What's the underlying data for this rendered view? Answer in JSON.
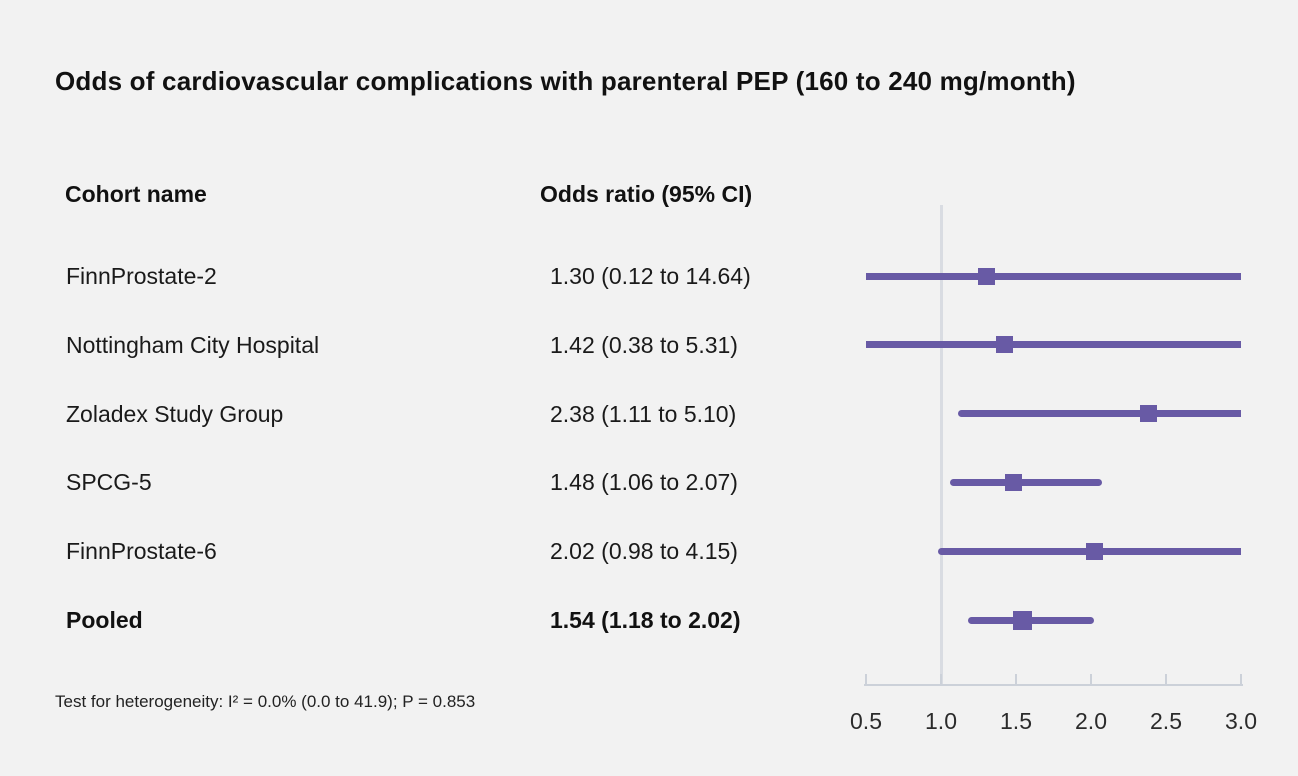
{
  "title": "Odds of cardiovascular complications with parenteral PEP (160 to 240 mg/month)",
  "table": {
    "cohort_header": "Cohort name",
    "or_header": "Odds ratio (95% CI)"
  },
  "footnote": "Test for heterogeneity: I² = 0.0% (0.0 to 41.9); P = 0.853",
  "colors": {
    "background": "#f2f2f2",
    "marker_purple": "#685aa5",
    "reference_line": "#d9dce2",
    "axis": "#ccd1d9",
    "text": "#1a1a1a"
  },
  "chart_data": {
    "type": "forest",
    "title": "Odds of cardiovascular complications with parenteral PEP (160 to 240 mg/month)",
    "xlim": [
      0.5,
      3.0
    ],
    "x_ticks": [
      "0.5",
      "1.0",
      "1.5",
      "2.0",
      "2.5",
      "3.0"
    ],
    "x_tick_values": [
      0.5,
      1.0,
      1.5,
      2.0,
      2.5,
      3.0
    ],
    "reference_line_value": 1.0,
    "grid": false,
    "legend": "none",
    "rows": [
      {
        "cohort": "FinnProstate-2",
        "or": 1.3,
        "ci_low": 0.12,
        "ci_high": 14.64,
        "value_label": "1.30 (0.12 to 14.64)",
        "pooled": false
      },
      {
        "cohort": "Nottingham City Hospital",
        "or": 1.42,
        "ci_low": 0.38,
        "ci_high": 5.31,
        "value_label": "1.42 (0.38 to 5.31)",
        "pooled": false
      },
      {
        "cohort": "Zoladex Study Group",
        "or": 2.38,
        "ci_low": 1.11,
        "ci_high": 5.1,
        "value_label": "2.38 (1.11 to 5.10)",
        "pooled": false
      },
      {
        "cohort": "SPCG-5",
        "or": 1.48,
        "ci_low": 1.06,
        "ci_high": 2.07,
        "value_label": "1.48 (1.06 to 2.07)",
        "pooled": false
      },
      {
        "cohort": "FinnProstate-6",
        "or": 2.02,
        "ci_low": 0.98,
        "ci_high": 4.15,
        "value_label": "2.02 (0.98 to 4.15)",
        "pooled": false
      },
      {
        "cohort": "Pooled",
        "or": 1.54,
        "ci_low": 1.18,
        "ci_high": 2.02,
        "value_label": "1.54 (1.18 to 2.02)",
        "pooled": true
      }
    ]
  }
}
